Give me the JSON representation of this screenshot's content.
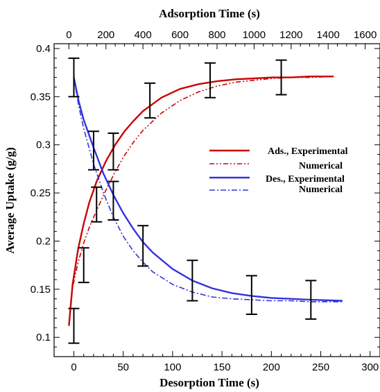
{
  "chart_data": {
    "type": "line",
    "title": "",
    "xlabel": "Desorption Time (s)",
    "x2label": "Adsorption Time (s)",
    "ylabel": "Average Uptake (g/g)",
    "xlim": [
      -20,
      310
    ],
    "x2lim": [
      -80,
      1680
    ],
    "ylim": [
      0.08,
      0.405
    ],
    "xticks": [
      0,
      50,
      100,
      150,
      200,
      250,
      300
    ],
    "x2ticks": [
      0,
      200,
      400,
      600,
      800,
      1000,
      1200,
      1400,
      1600
    ],
    "yticks": [
      0.1,
      0.15,
      0.2,
      0.25,
      0.3,
      0.35,
      0.4
    ],
    "grid": false,
    "legend_position": "center-right",
    "legend": [
      {
        "label": "Ads., Experimental"
      },
      {
        "label": "Numerical"
      },
      {
        "label": "Des., Experimental"
      },
      {
        "label": "Numerical"
      }
    ],
    "series": [
      {
        "name": "Ads., Experimental",
        "axis": "top",
        "color": "#cc0000",
        "style": "solid",
        "x": [
          0,
          20,
          50,
          80,
          110,
          150,
          200,
          250,
          300,
          350,
          400,
          500,
          600,
          700,
          800,
          900,
          1000,
          1100,
          1200,
          1300,
          1430
        ],
        "y": [
          0.112,
          0.155,
          0.192,
          0.218,
          0.24,
          0.262,
          0.283,
          0.3,
          0.314,
          0.325,
          0.335,
          0.349,
          0.358,
          0.363,
          0.366,
          0.368,
          0.369,
          0.37,
          0.37,
          0.371,
          0.371
        ]
      },
      {
        "name": "Ads., Numerical",
        "axis": "top",
        "color": "#cc0000",
        "style": "dash-dot-dot",
        "x": [
          0,
          20,
          50,
          80,
          110,
          150,
          200,
          250,
          300,
          350,
          400,
          500,
          600,
          700,
          800,
          900,
          1000,
          1100,
          1200,
          1300,
          1430
        ],
        "y": [
          0.112,
          0.152,
          0.178,
          0.198,
          0.214,
          0.232,
          0.253,
          0.272,
          0.289,
          0.303,
          0.315,
          0.333,
          0.346,
          0.355,
          0.361,
          0.365,
          0.367,
          0.369,
          0.37,
          0.37,
          0.371
        ]
      },
      {
        "name": "Des., Experimental",
        "axis": "bottom",
        "color": "#3333dd",
        "style": "solid",
        "x": [
          0,
          5,
          10,
          20,
          30,
          40,
          50,
          60,
          70,
          80,
          100,
          120,
          140,
          160,
          180,
          200,
          220,
          240,
          272
        ],
        "y": [
          0.37,
          0.345,
          0.326,
          0.297,
          0.27,
          0.248,
          0.229,
          0.213,
          0.199,
          0.188,
          0.171,
          0.159,
          0.151,
          0.146,
          0.143,
          0.141,
          0.14,
          0.139,
          0.138
        ]
      },
      {
        "name": "Des., Numerical",
        "axis": "bottom",
        "color": "#3333dd",
        "style": "dash-dot",
        "x": [
          0,
          5,
          10,
          20,
          30,
          40,
          50,
          60,
          70,
          80,
          100,
          120,
          140,
          160,
          180,
          200,
          220,
          240,
          272
        ],
        "y": [
          0.37,
          0.34,
          0.317,
          0.28,
          0.25,
          0.225,
          0.205,
          0.19,
          0.178,
          0.168,
          0.155,
          0.147,
          0.142,
          0.14,
          0.139,
          0.138,
          0.138,
          0.137,
          0.137
        ]
      }
    ],
    "error_bars": [
      {
        "x": 0,
        "y": 0.37,
        "err": 0.02
      },
      {
        "x": 0,
        "y": 0.112,
        "err": 0.018
      },
      {
        "x": 10,
        "y": 0.175,
        "err": 0.018
      },
      {
        "x": 20,
        "y": 0.294,
        "err": 0.02
      },
      {
        "x": 23,
        "y": 0.238,
        "err": 0.018
      },
      {
        "x": 40,
        "y": 0.293,
        "err": 0.019
      },
      {
        "x": 40,
        "y": 0.242,
        "err": 0.02
      },
      {
        "x": 70,
        "y": 0.195,
        "err": 0.021
      },
      {
        "x": 77,
        "y": 0.346,
        "err": 0.018
      },
      {
        "x": 120,
        "y": 0.159,
        "err": 0.021
      },
      {
        "x": 138,
        "y": 0.367,
        "err": 0.018
      },
      {
        "x": 180,
        "y": 0.144,
        "err": 0.02
      },
      {
        "x": 210,
        "y": 0.37,
        "err": 0.018
      },
      {
        "x": 240,
        "y": 0.139,
        "err": 0.02
      }
    ]
  }
}
